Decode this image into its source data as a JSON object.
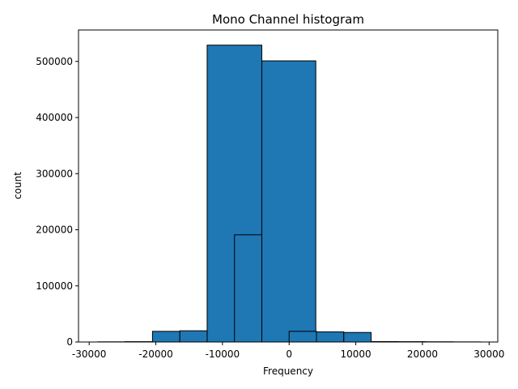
{
  "chart_data": {
    "type": "histogram",
    "title": "Mono Channel histogram",
    "x_label": "Frequency",
    "y_label": "count",
    "series": [
      {
        "color": "#1f77b4",
        "bins": [
          -12300,
          -4100,
          4000
        ],
        "values": [
          529000,
          501000
        ]
      },
      {
        "color": "#1f77b4",
        "bins": [
          -28700,
          -24600,
          -20500,
          -16400,
          -12300,
          -8200,
          -4100,
          0,
          4100,
          8200,
          12300,
          16400,
          20500,
          24600,
          28700
        ],
        "values": [
          300,
          600,
          19000,
          20000,
          null,
          191000,
          null,
          19000,
          18000,
          17000,
          800,
          600,
          400,
          200
        ]
      }
    ],
    "edge_color": "#000000",
    "xlim": [
      -31600,
      31300
    ],
    "xticks": [
      -30000,
      -20000,
      -10000,
      0,
      10000,
      20000,
      30000
    ],
    "ylim": [
      0,
      556000
    ],
    "yticks": [
      0,
      100000,
      200000,
      300000,
      400000,
      500000
    ]
  }
}
